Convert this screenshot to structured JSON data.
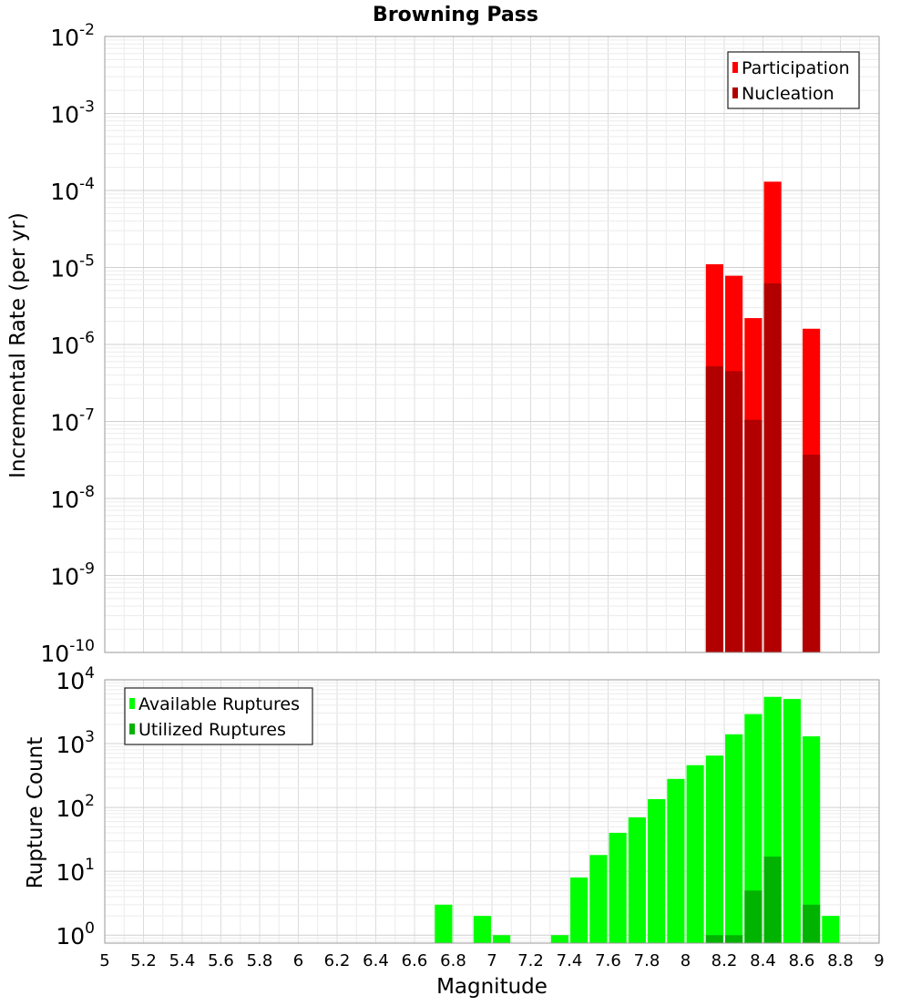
{
  "chart_data": [
    {
      "type": "bar",
      "title": "Browning Pass",
      "ylabel": "Incremental Rate (per yr)",
      "xlabel": "",
      "yscale": "log",
      "ylim": [
        1e-10,
        0.01
      ],
      "xlim": [
        5,
        9
      ],
      "y_tick_exponents": [
        -2,
        -3,
        -4,
        -5,
        -6,
        -7,
        -8,
        -9,
        -10
      ],
      "legend_position": "top-right",
      "grid": true,
      "series": [
        {
          "name": "Participation",
          "color": "#ff0000",
          "x": [
            8.15,
            8.25,
            8.35,
            8.45,
            8.65
          ],
          "values": [
            1.1e-05,
            7.8e-06,
            2.2e-06,
            0.00013,
            1.6e-06
          ]
        },
        {
          "name": "Nucleation",
          "color": "#b20000",
          "x": [
            8.15,
            8.25,
            8.35,
            8.45,
            8.65
          ],
          "values": [
            5.2e-07,
            4.5e-07,
            1.05e-07,
            6.2e-06,
            3.7e-08
          ]
        }
      ],
      "bar_width": 0.09
    },
    {
      "type": "bar",
      "title": "",
      "ylabel": "Rupture Count",
      "xlabel": "Magnitude",
      "yscale": "log",
      "ylim": [
        0.75,
        10000
      ],
      "xlim": [
        5,
        9
      ],
      "y_tick_exponents": [
        4,
        3,
        2,
        1,
        0
      ],
      "x_ticks": [
        "5",
        "5.2",
        "5.4",
        "5.6",
        "5.8",
        "6",
        "6.2",
        "6.4",
        "6.6",
        "6.8",
        "7",
        "7.2",
        "7.4",
        "7.6",
        "7.8",
        "8",
        "8.2",
        "8.4",
        "8.6",
        "8.8",
        "9"
      ],
      "legend_position": "top-left",
      "grid": true,
      "series": [
        {
          "name": "Available Ruptures",
          "color": "#00ff00",
          "x": [
            6.75,
            6.95,
            7.05,
            7.35,
            7.45,
            7.55,
            7.65,
            7.75,
            7.85,
            7.95,
            8.05,
            8.15,
            8.25,
            8.35,
            8.45,
            8.55,
            8.65,
            8.75
          ],
          "values": [
            3,
            2,
            1,
            1,
            8,
            18,
            40,
            70,
            135,
            280,
            460,
            650,
            1400,
            2900,
            5400,
            5000,
            1300,
            2
          ]
        },
        {
          "name": "Utilized Ruptures",
          "color": "#00b300",
          "x": [
            8.15,
            8.25,
            8.35,
            8.45,
            8.65
          ],
          "values": [
            1,
            1,
            5,
            17,
            3
          ]
        }
      ],
      "bar_width": 0.09
    }
  ]
}
